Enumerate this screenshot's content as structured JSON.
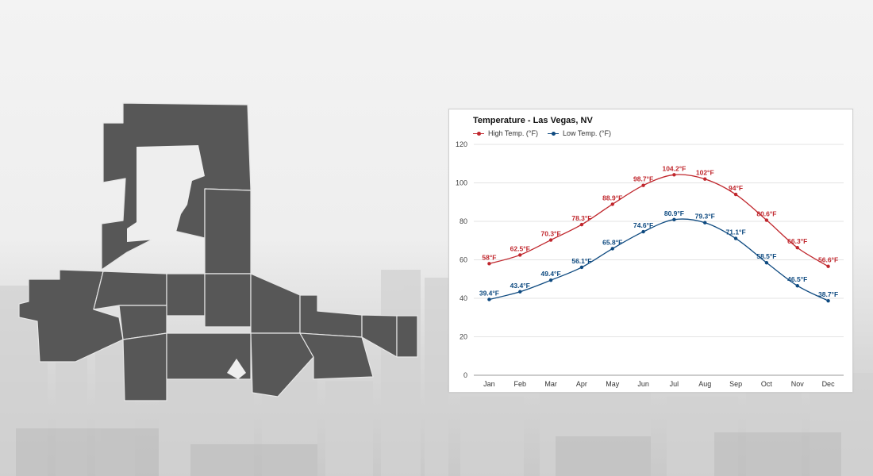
{
  "colors": {
    "high": "#c0272d",
    "low": "#0e4a80",
    "map": "#575757",
    "map_stroke": "#e6e6e6"
  },
  "chart_data": {
    "type": "line",
    "title": "Temperature - Las Vegas, NV",
    "categories": [
      "Jan",
      "Feb",
      "Mar",
      "Apr",
      "May",
      "Jun",
      "Jul",
      "Aug",
      "Sep",
      "Oct",
      "Nov",
      "Dec"
    ],
    "ylim": [
      0,
      120
    ],
    "yticks": [
      0,
      20,
      40,
      60,
      80,
      100,
      120
    ],
    "grid": true,
    "legend_position": "top-left",
    "series": [
      {
        "name": "High Temp. (°F)",
        "values": [
          58,
          62.5,
          70.3,
          78.3,
          88.9,
          98.7,
          104.2,
          102,
          94,
          80.6,
          66.3,
          56.6
        ],
        "labels": [
          "58°F",
          "62.5°F",
          "70.3°F",
          "78.3°F",
          "88.9°F",
          "98.7°F",
          "104.2°F",
          "102°F",
          "94°F",
          "80.6°F",
          "66.3°F",
          "56.6°F"
        ]
      },
      {
        "name": "Low Temp. (°F)",
        "values": [
          39.4,
          43.4,
          49.4,
          56.1,
          65.8,
          74.6,
          80.9,
          79.3,
          71.1,
          58.5,
          46.5,
          38.7
        ],
        "labels": [
          "39.4°F",
          "43.4°F",
          "49.4°F",
          "56.1°F",
          "65.8°F",
          "74.6°F",
          "80.9°F",
          "79.3°F",
          "71.1°F",
          "58.5°F",
          "46.5°F",
          "38.7°F"
        ]
      }
    ]
  }
}
